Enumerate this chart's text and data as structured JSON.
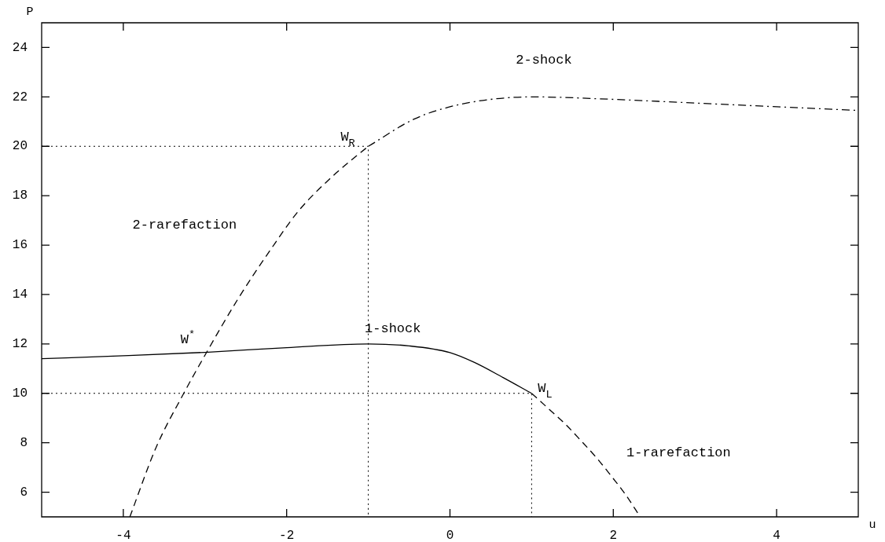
{
  "chart_data": {
    "type": "line",
    "xlabel": "u",
    "ylabel": "P",
    "xlim": [
      -5,
      5
    ],
    "ylim": [
      5,
      25
    ],
    "xticks": [
      -4,
      -2,
      0,
      2,
      4
    ],
    "yticks": [
      6,
      8,
      10,
      12,
      14,
      16,
      18,
      20,
      22,
      24
    ],
    "grid": false,
    "legend": false,
    "marker": "none",
    "series": [
      {
        "name": "1-shock",
        "color": "#000000",
        "line_style": "solid",
        "x": [
          -5,
          -4,
          -3,
          -2,
          -1,
          -0.5,
          0,
          0.3,
          0.65,
          1
        ],
        "values": [
          11.4,
          11.52,
          11.66,
          11.85,
          12.0,
          11.92,
          11.65,
          11.25,
          10.64,
          10.0
        ]
      },
      {
        "name": "1-rarefaction",
        "color": "#000000",
        "line_style": "dashed",
        "x": [
          1,
          1.2,
          1.42,
          1.6,
          1.8,
          2.0,
          2.15,
          2.33
        ],
        "values": [
          10.0,
          9.4,
          8.73,
          8.1,
          7.37,
          6.55,
          5.9,
          5.0
        ]
      },
      {
        "name": "2-rarefaction",
        "color": "#000000",
        "line_style": "dashed",
        "x": [
          -3.92,
          -3.6,
          -3.26,
          -2.98,
          -2.6,
          -2.2,
          -1.85,
          -1.4,
          -1
        ],
        "values": [
          5.0,
          7.8,
          10.0,
          11.66,
          13.8,
          15.8,
          17.4,
          18.9,
          20.0
        ]
      },
      {
        "name": "2-shock",
        "color": "#000000",
        "line_style": "dashdot",
        "x": [
          -1,
          -0.44,
          0,
          0.5,
          1,
          2,
          3,
          4,
          5
        ],
        "values": [
          20.0,
          21.1,
          21.6,
          21.9,
          22.0,
          21.9,
          21.75,
          21.6,
          21.45
        ]
      },
      {
        "color": "#000000",
        "line_style": "dotted",
        "x": [
          -5,
          -1,
          -1
        ],
        "values": [
          20,
          20,
          5
        ]
      },
      {
        "color": "#000000",
        "line_style": "dotted",
        "x": [
          -5,
          1,
          1
        ],
        "values": [
          10,
          10,
          5
        ]
      }
    ],
    "annotations": [
      {
        "text": "W$_{R}$",
        "x": -1,
        "y": 20
      },
      {
        "text": "W$_{L}$",
        "x": 1,
        "y": 10
      },
      {
        "text": "W$^{*}$",
        "x": -2.98,
        "y": 11.66
      }
    ]
  }
}
